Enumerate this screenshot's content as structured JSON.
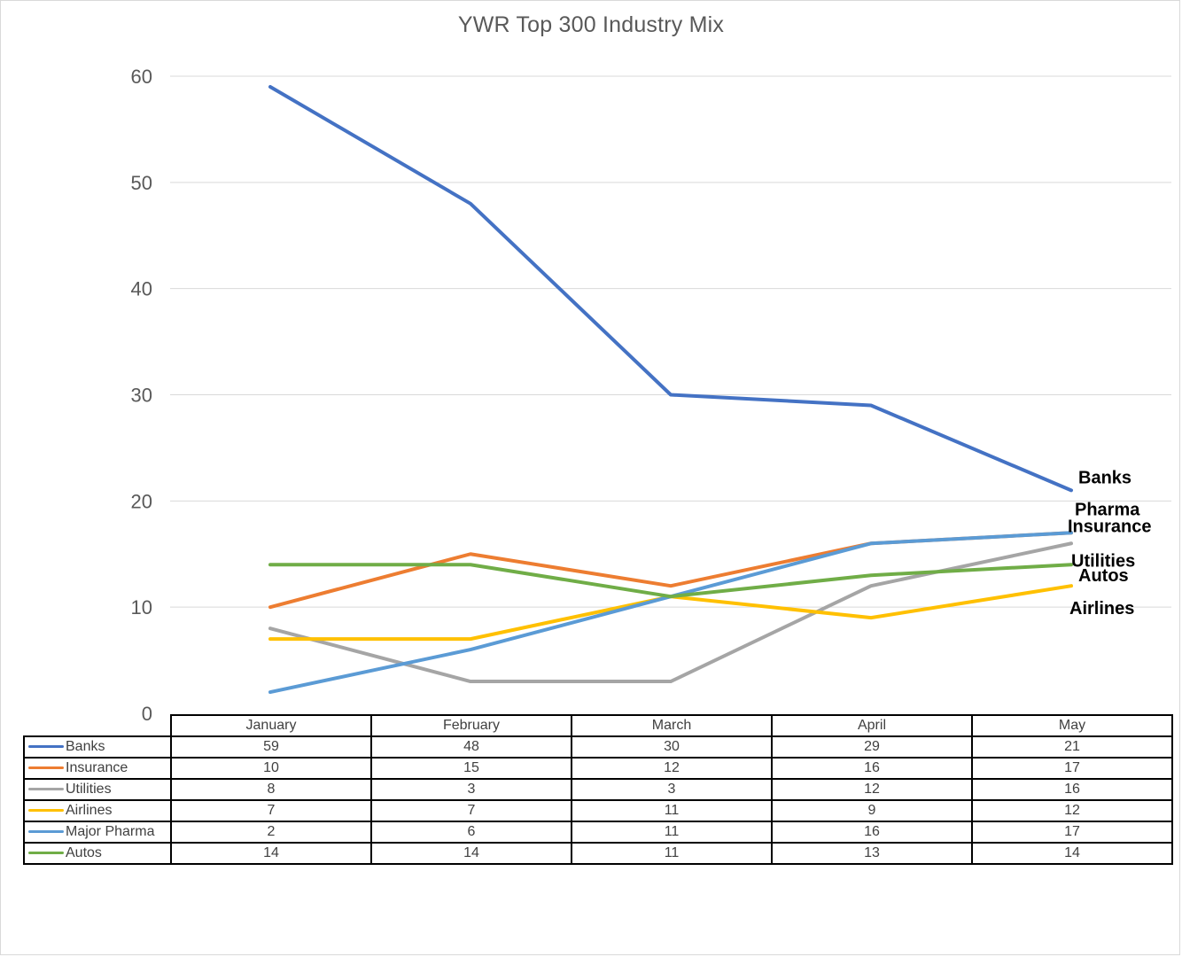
{
  "chart_data": {
    "type": "line",
    "title": "YWR Top 300 Industry Mix",
    "categories": [
      "January",
      "February",
      "March",
      "April",
      "May"
    ],
    "ylim": [
      0,
      60
    ],
    "yticks": [
      0,
      10,
      20,
      30,
      40,
      50,
      60
    ],
    "grid": true,
    "legend": "data-table",
    "series": [
      {
        "name": "Banks",
        "end_label": "Banks",
        "color": "#4472c4",
        "values": [
          59,
          48,
          30,
          29,
          21
        ]
      },
      {
        "name": "Insurance",
        "end_label": "Insurance",
        "color": "#ed7d31",
        "values": [
          10,
          15,
          12,
          16,
          17
        ]
      },
      {
        "name": "Utilities",
        "end_label": "Utilities",
        "color": "#a5a5a5",
        "values": [
          8,
          3,
          3,
          12,
          16
        ]
      },
      {
        "name": "Airlines",
        "end_label": "Airlines",
        "color": "#ffc000",
        "values": [
          7,
          7,
          11,
          9,
          12
        ]
      },
      {
        "name": "Major Pharma",
        "end_label": "Pharma",
        "color": "#5b9bd5",
        "values": [
          2,
          6,
          11,
          16,
          17
        ]
      },
      {
        "name": "Autos",
        "end_label": "Autos",
        "color": "#70ad47",
        "values": [
          14,
          14,
          11,
          13,
          14
        ]
      }
    ]
  }
}
